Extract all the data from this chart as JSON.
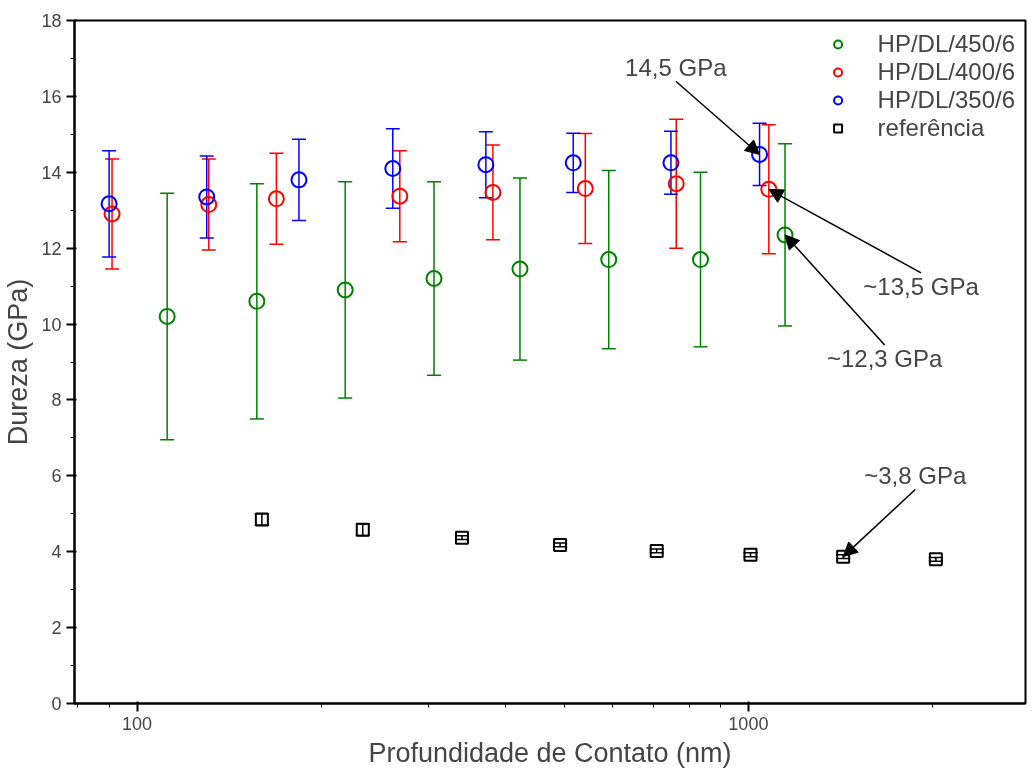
{
  "chart_data": {
    "type": "scatter",
    "xlabel": "Profundidade de Contato (nm)",
    "ylabel": "Dureza (GPa)",
    "log": "x",
    "xlim": [
      79,
      2840
    ],
    "xticks": [
      100,
      1000
    ],
    "ylim": [
      0,
      18
    ],
    "yticks": [
      0,
      2,
      4,
      6,
      8,
      10,
      12,
      14,
      16,
      18
    ],
    "grid": false,
    "legend": "top right",
    "series": [
      {
        "name": "HP/DL/450/6",
        "color": "#008000",
        "marker": "circle",
        "x": [
          112,
          157,
          219,
          306,
          423,
          591,
          835,
          1148
        ],
        "values": [
          10.2,
          10.6,
          10.9,
          11.2,
          11.45,
          11.7,
          11.7,
          12.35
        ],
        "errors": [
          3.25,
          3.1,
          2.85,
          2.55,
          2.4,
          2.35,
          2.3,
          2.4
        ]
      },
      {
        "name": "HP/DL/400/6",
        "color": "#ff0000",
        "marker": "circle",
        "x": [
          91,
          131,
          169,
          269,
          382,
          541,
          762,
          1080
        ],
        "values": [
          12.9,
          13.15,
          13.3,
          13.37,
          13.47,
          13.57,
          13.7,
          13.55
        ],
        "errors": [
          1.45,
          1.2,
          1.2,
          1.2,
          1.25,
          1.45,
          1.7,
          1.7
        ]
      },
      {
        "name": "HP/DL/350/6",
        "color": "#0000ff",
        "marker": "circle",
        "x": [
          90,
          130,
          184,
          262,
          372,
          517,
          747,
          1043
        ],
        "values": [
          13.17,
          13.35,
          13.8,
          14.1,
          14.2,
          14.25,
          14.25,
          14.47
        ],
        "errors": [
          1.4,
          1.08,
          1.07,
          1.05,
          0.87,
          0.78,
          0.83,
          0.82
        ]
      },
      {
        "name": "referência",
        "color": "#000000",
        "marker": "square",
        "x": [
          160,
          234,
          340,
          492,
          708,
          1008,
          1429,
          2026
        ],
        "values": [
          4.85,
          4.58,
          4.37,
          4.18,
          4.02,
          3.92,
          3.87,
          3.8
        ],
        "errors": [
          0.15,
          0.15,
          0.05,
          0.05,
          0.05,
          0.05,
          0.05,
          0.05
        ]
      }
    ],
    "annotations": [
      {
        "text": "14,5 GPa",
        "x": 1043,
        "y": 14.47
      },
      {
        "text": "~13,5 GPa",
        "x": 1080,
        "y": 13.55
      },
      {
        "text": "~12,3 GPa",
        "x": 1148,
        "y": 12.35
      },
      {
        "text": "~3,8 GPa",
        "x": 1429,
        "y": 3.87
      }
    ]
  }
}
